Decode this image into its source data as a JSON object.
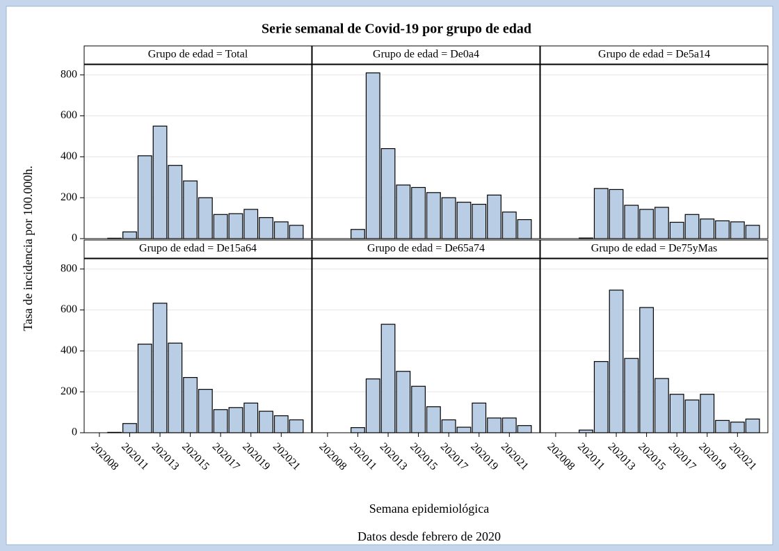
{
  "chart_data": {
    "type": "bar",
    "title": "Serie semanal de Covid-19 por grupo de edad",
    "ylabel": "Tasa de incidencia por 100.000h.",
    "xlabel": "Semana epidemiológica",
    "footnote": "Datos desde febrero de 2020",
    "categories": [
      "202008",
      null,
      "202011",
      null,
      "202013",
      null,
      "202015",
      null,
      "202017",
      null,
      "202019",
      null,
      "202021",
      null
    ],
    "ylim": [
      0,
      850
    ],
    "yticks": [
      0,
      200,
      400,
      600,
      800
    ],
    "grid": true,
    "color": "#b9cde5",
    "panels": [
      {
        "title": "Grupo de edad = Total",
        "values": [
          0,
          2,
          33,
          405,
          550,
          358,
          282,
          200,
          118,
          122,
          143,
          103,
          82,
          65
        ]
      },
      {
        "title": "Grupo de edad = De0a4",
        "values": [
          0,
          0,
          45,
          810,
          440,
          262,
          250,
          225,
          200,
          178,
          168,
          213,
          130,
          93
        ]
      },
      {
        "title": "Grupo de edad = De5a14",
        "values": [
          0,
          0,
          3,
          245,
          240,
          163,
          143,
          153,
          80,
          118,
          96,
          87,
          82,
          65
        ]
      },
      {
        "title": "Grupo de edad = De15a64",
        "values": [
          0,
          2,
          45,
          433,
          633,
          438,
          270,
          212,
          113,
          123,
          145,
          105,
          83,
          63
        ]
      },
      {
        "title": "Grupo de edad = De65a74",
        "values": [
          0,
          0,
          25,
          263,
          530,
          300,
          227,
          127,
          63,
          27,
          145,
          72,
          72,
          35
        ]
      },
      {
        "title": "Grupo de edad = De75yMas",
        "values": [
          0,
          0,
          13,
          348,
          697,
          363,
          612,
          265,
          188,
          160,
          188,
          60,
          52,
          67
        ]
      }
    ]
  }
}
